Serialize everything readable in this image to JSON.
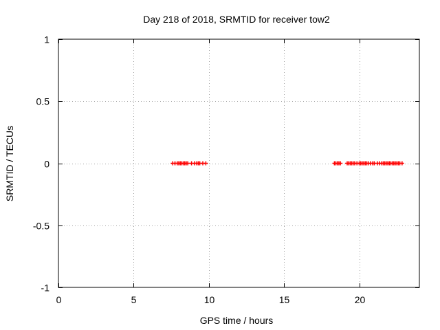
{
  "chart_data": {
    "type": "scatter",
    "title": "Day 218 of 2018, SRMTID for receiver tow2",
    "xlabel": "GPS time / hours",
    "ylabel": "SRMTID / TECUs",
    "xlim": [
      0,
      24
    ],
    "ylim": [
      -1,
      1
    ],
    "xticks": [
      0,
      5,
      10,
      15,
      20
    ],
    "yticks": [
      -1,
      -0.5,
      0,
      0.5,
      1
    ],
    "xtick_labels": [
      "0",
      "5",
      "10",
      "15",
      "20"
    ],
    "ytick_labels": [
      "-1",
      "-0.5",
      "0",
      "0.5",
      "1"
    ],
    "grid": true,
    "marker": "plus",
    "series": [
      {
        "name": "SRMTID",
        "color": "#ff0000",
        "x": [
          7.6,
          7.75,
          7.9,
          8.0,
          8.1,
          8.2,
          8.3,
          8.4,
          8.5,
          8.6,
          8.85,
          9.05,
          9.2,
          9.3,
          9.4,
          9.6,
          9.8,
          18.35,
          18.45,
          18.55,
          18.65,
          18.75,
          19.2,
          19.3,
          19.4,
          19.5,
          19.6,
          19.7,
          19.85,
          20.0,
          20.1,
          20.2,
          20.3,
          20.4,
          20.5,
          20.6,
          20.75,
          20.9,
          21.0,
          21.2,
          21.35,
          21.5,
          21.6,
          21.7,
          21.8,
          21.9,
          22.0,
          22.1,
          22.2,
          22.3,
          22.4,
          22.5,
          22.6,
          22.7,
          22.85
        ],
        "y": [
          0,
          0,
          0,
          0,
          0,
          0,
          0,
          0,
          0,
          0,
          0,
          0,
          0,
          0,
          0,
          0,
          0,
          0,
          0,
          0,
          0,
          0,
          0,
          0,
          0,
          0,
          0,
          0,
          0,
          0,
          0,
          0,
          0,
          0,
          0,
          0,
          0,
          0,
          0,
          0,
          0,
          0,
          0,
          0,
          0,
          0,
          0,
          0,
          0,
          0,
          0,
          0,
          0,
          0,
          0
        ]
      }
    ]
  }
}
